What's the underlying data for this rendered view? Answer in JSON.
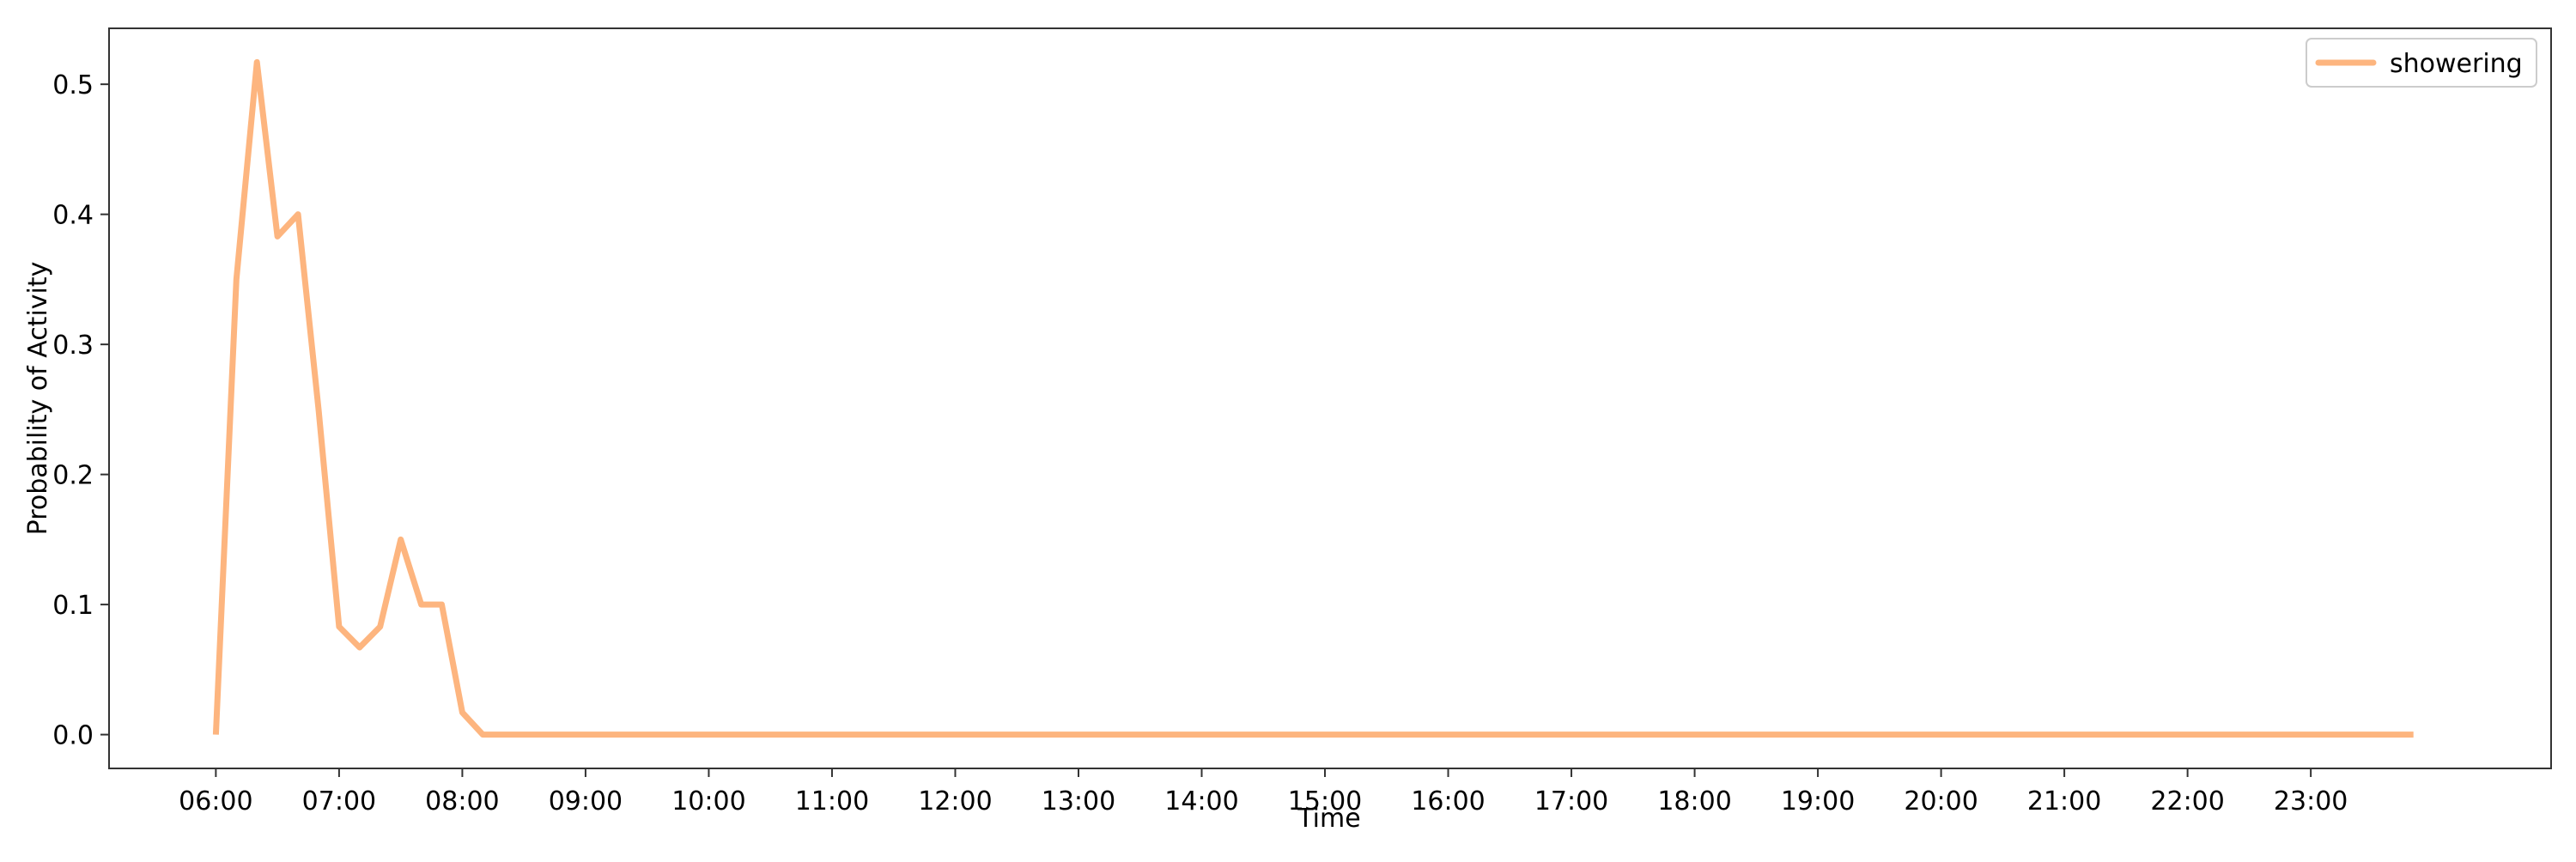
{
  "chart_data": {
    "type": "line",
    "xlabel": "Time",
    "ylabel": "Probability of Activity",
    "xlim": [
      "05:08",
      "24:57"
    ],
    "ylim": [
      -0.026,
      0.543
    ],
    "x_ticks": [
      "06:00",
      "07:00",
      "08:00",
      "09:00",
      "10:00",
      "11:00",
      "12:00",
      "13:00",
      "14:00",
      "15:00",
      "16:00",
      "17:00",
      "18:00",
      "19:00",
      "20:00",
      "21:00",
      "22:00",
      "23:00"
    ],
    "y_ticks": [
      "0.0",
      "0.1",
      "0.2",
      "0.3",
      "0.4",
      "0.5"
    ],
    "grid": false,
    "legend": {
      "position": "top-right",
      "entries": [
        "showering"
      ]
    },
    "series": [
      {
        "name": "showering",
        "color": "#fdb57f",
        "x": [
          "06:00",
          "06:10",
          "06:20",
          "06:30",
          "06:40",
          "06:50",
          "07:00",
          "07:10",
          "07:20",
          "07:30",
          "07:40",
          "07:50",
          "08:00",
          "08:10",
          "08:20",
          "08:30",
          "08:40",
          "08:50",
          "09:00",
          "23:50"
        ],
        "y": [
          0.0,
          0.35,
          0.517,
          0.383,
          0.4,
          0.25,
          0.083,
          0.067,
          0.083,
          0.15,
          0.1,
          0.1,
          0.017,
          0.0,
          0.0,
          0.0,
          0.0,
          0.0,
          0.0,
          0.0
        ]
      }
    ]
  }
}
